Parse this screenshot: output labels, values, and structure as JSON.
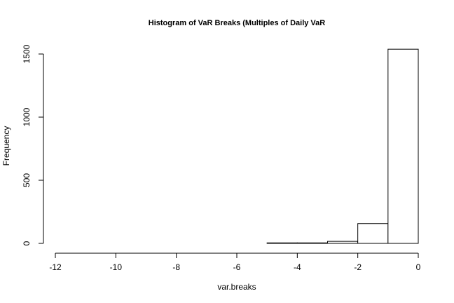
{
  "chart_data": {
    "type": "bar",
    "title": "Histogram of VaR Breaks (Multiples of Daily VaR",
    "xlabel": "var.breaks",
    "ylabel": "Frequency",
    "xlim": [
      -12,
      0
    ],
    "ylim": [
      0,
      1500
    ],
    "x_ticks": [
      -12,
      -10,
      -8,
      -6,
      -4,
      -2,
      0
    ],
    "y_ticks": [
      0,
      500,
      1000,
      1500
    ],
    "bins": [
      {
        "from": -12,
        "to": -11,
        "count": 0
      },
      {
        "from": -11,
        "to": -10,
        "count": 0
      },
      {
        "from": -10,
        "to": -9,
        "count": 0
      },
      {
        "from": -9,
        "to": -8,
        "count": 0
      },
      {
        "from": -8,
        "to": -7,
        "count": 0
      },
      {
        "from": -7,
        "to": -6,
        "count": 0
      },
      {
        "from": -6,
        "to": -5,
        "count": 0
      },
      {
        "from": -5,
        "to": -4,
        "count": 4
      },
      {
        "from": -4,
        "to": -3,
        "count": 4
      },
      {
        "from": -3,
        "to": -2,
        "count": 16
      },
      {
        "from": -2,
        "to": -1,
        "count": 157
      },
      {
        "from": -1,
        "to": 0,
        "count": 1538
      }
    ]
  }
}
